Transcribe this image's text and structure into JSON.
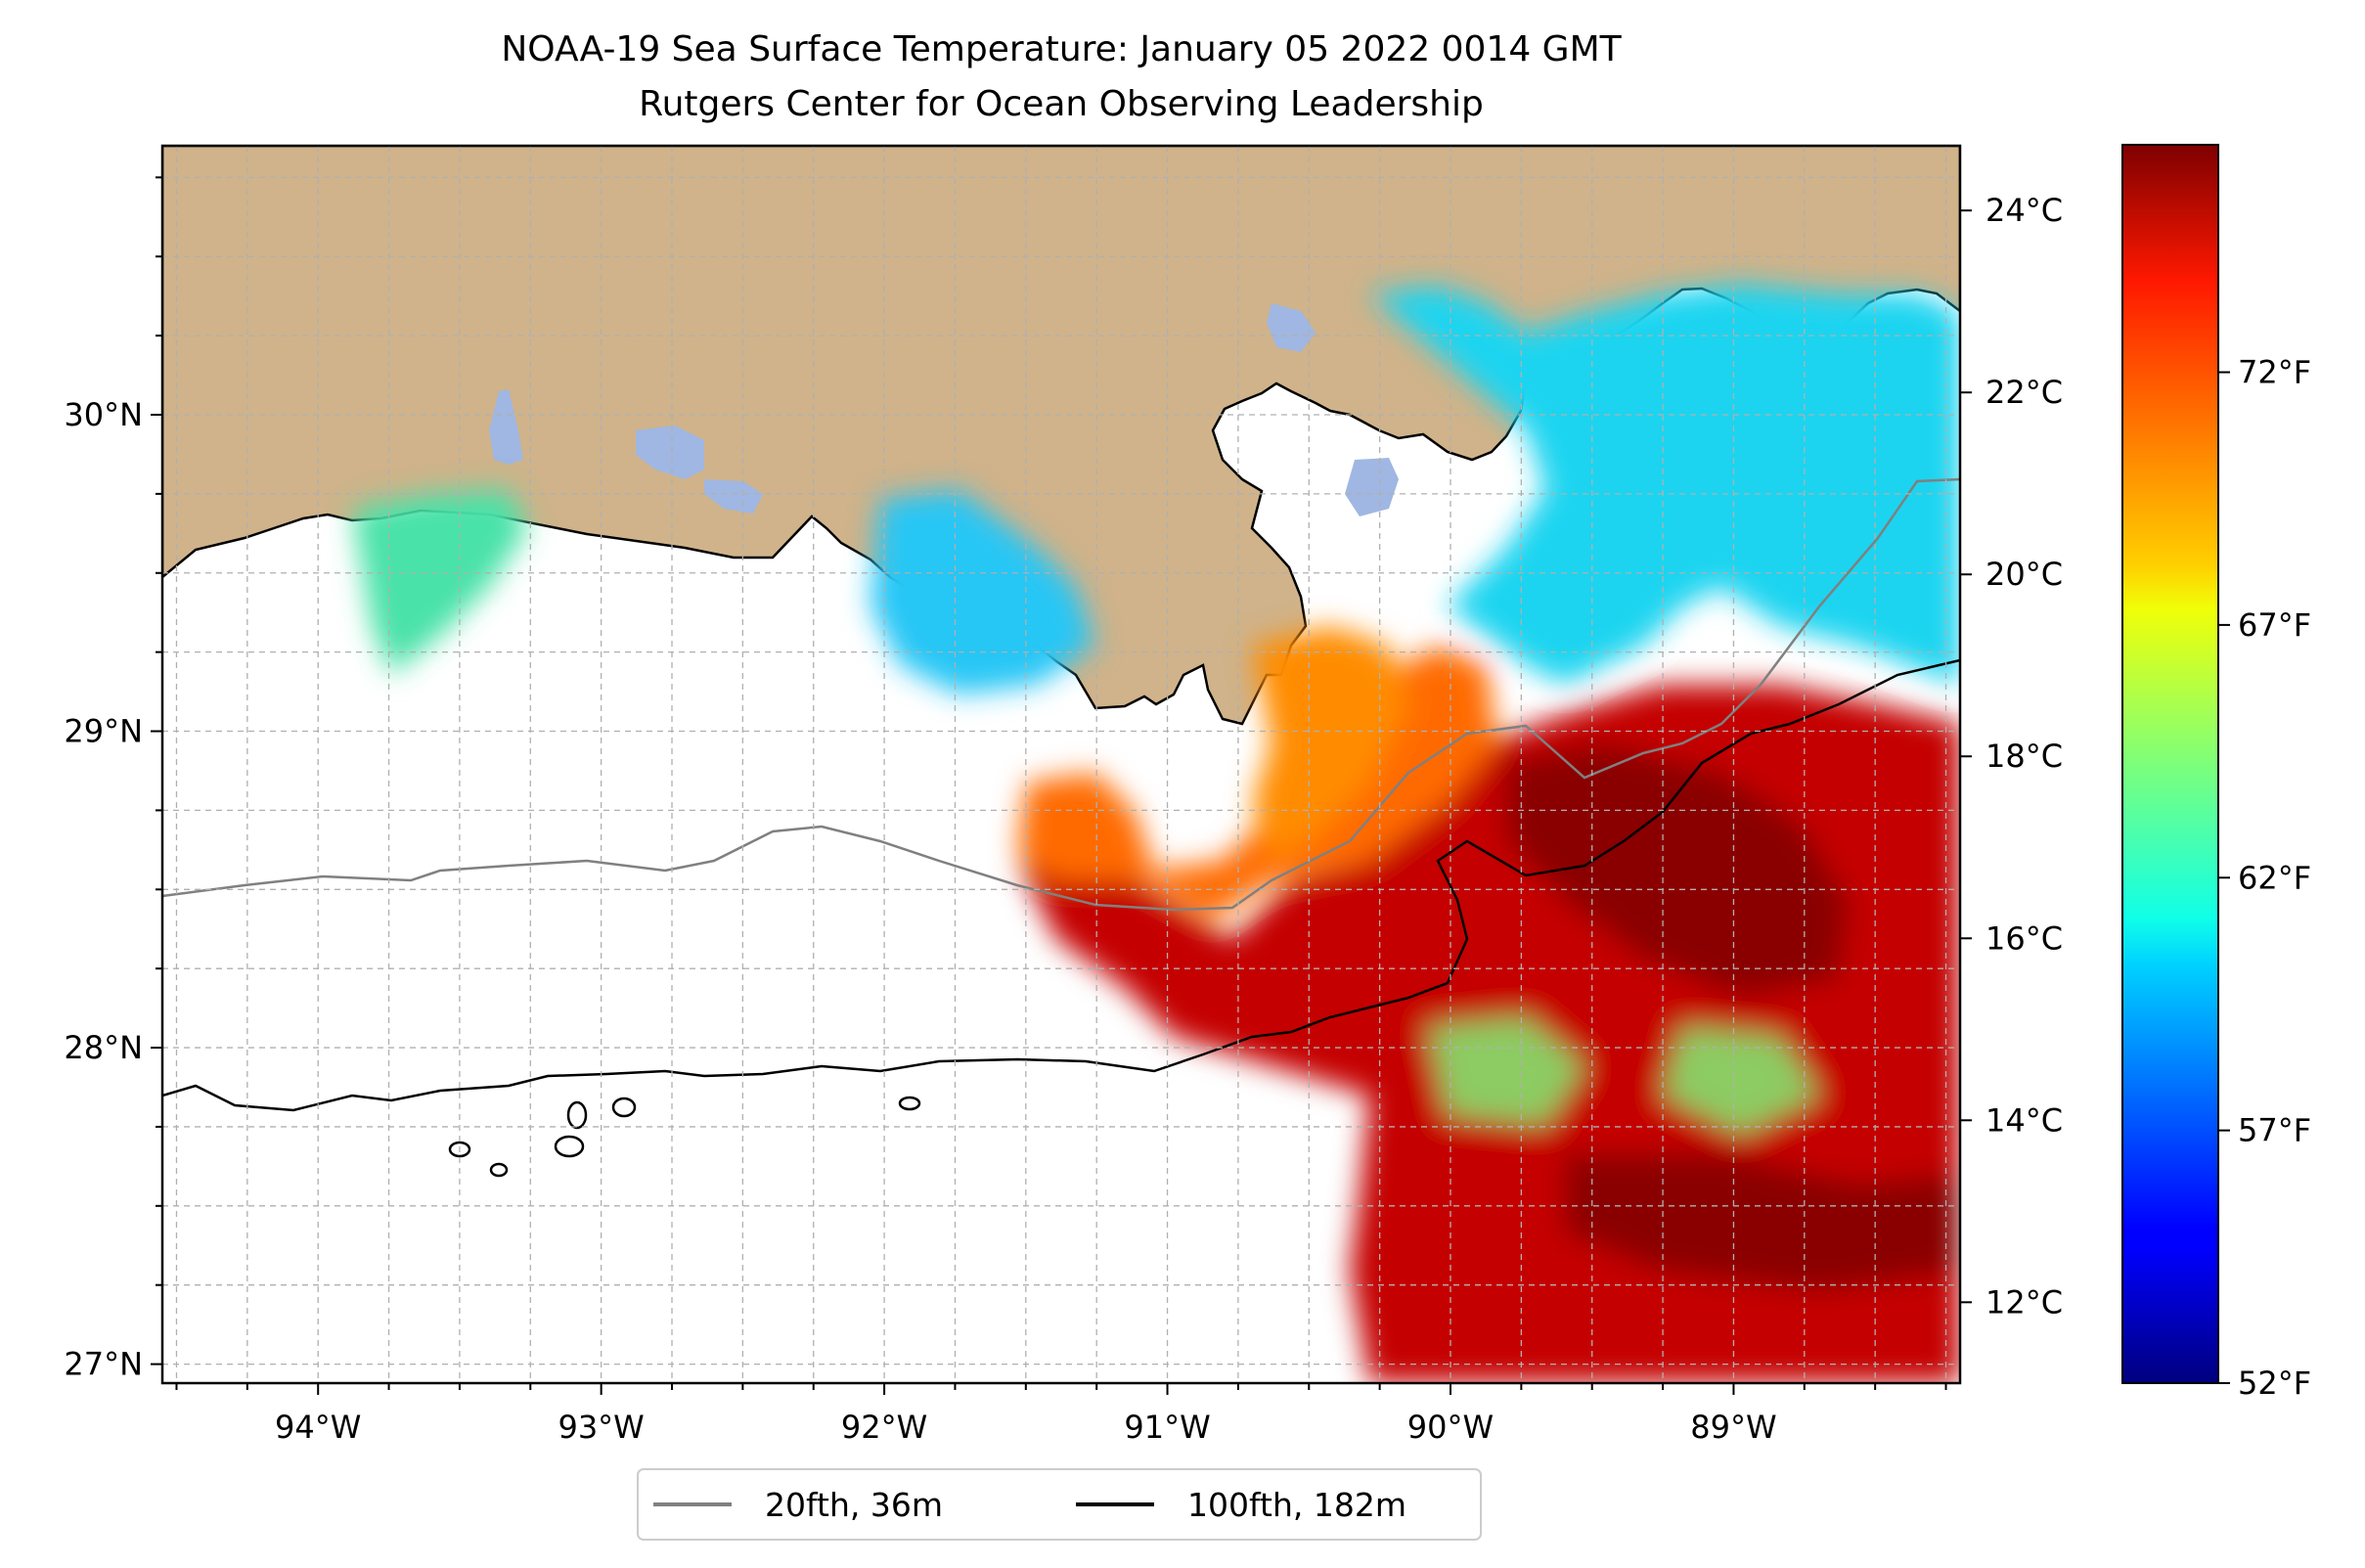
{
  "title": {
    "line1": "NOAA-19 Sea Surface Temperature: January 05 2022 0014 GMT",
    "line2": "Rutgers Center for Ocean Observing Leadership"
  },
  "map": {
    "lon_range": [
      -94.55,
      -88.2
    ],
    "lat_range": [
      26.94,
      30.85
    ],
    "lat_ticks": [
      {
        "value": 30,
        "label": "30°N"
      },
      {
        "value": 29,
        "label": "29°N"
      },
      {
        "value": 28,
        "label": "28°N"
      },
      {
        "value": 27,
        "label": "27°N"
      }
    ],
    "lon_ticks": [
      {
        "value": -94,
        "label": "94°W"
      },
      {
        "value": -93,
        "label": "93°W"
      },
      {
        "value": -92,
        "label": "92°W"
      },
      {
        "value": -91,
        "label": "91°W"
      },
      {
        "value": -90,
        "label": "90°W"
      },
      {
        "value": -89,
        "label": "89°W"
      }
    ],
    "gridlines": true,
    "grid_step_deg": 0.25,
    "land_color": "#d0b38a",
    "lake_color": "#9fb7e2"
  },
  "colorbar": {
    "colormap": "jet",
    "celsius_ticks": [
      {
        "value": 24,
        "label": "24°C"
      },
      {
        "value": 22,
        "label": "22°C"
      },
      {
        "value": 20,
        "label": "20°C"
      },
      {
        "value": 18,
        "label": "18°C"
      },
      {
        "value": 16,
        "label": "16°C"
      },
      {
        "value": 14,
        "label": "14°C"
      },
      {
        "value": 12,
        "label": "12°C"
      }
    ],
    "fahrenheit_ticks": [
      {
        "value": 72,
        "label": "72°F"
      },
      {
        "value": 67,
        "label": "67°F"
      },
      {
        "value": 62,
        "label": "62°F"
      },
      {
        "value": 57,
        "label": "57°F"
      },
      {
        "value": 52,
        "label": "52°F"
      }
    ],
    "range_f": [
      52,
      76.5
    ]
  },
  "legend": {
    "placement": "bottom-center",
    "items": [
      {
        "label": "20fth, 36m",
        "color": "#808080"
      },
      {
        "label": "100fth, 182m",
        "color": "#000000"
      }
    ]
  }
}
